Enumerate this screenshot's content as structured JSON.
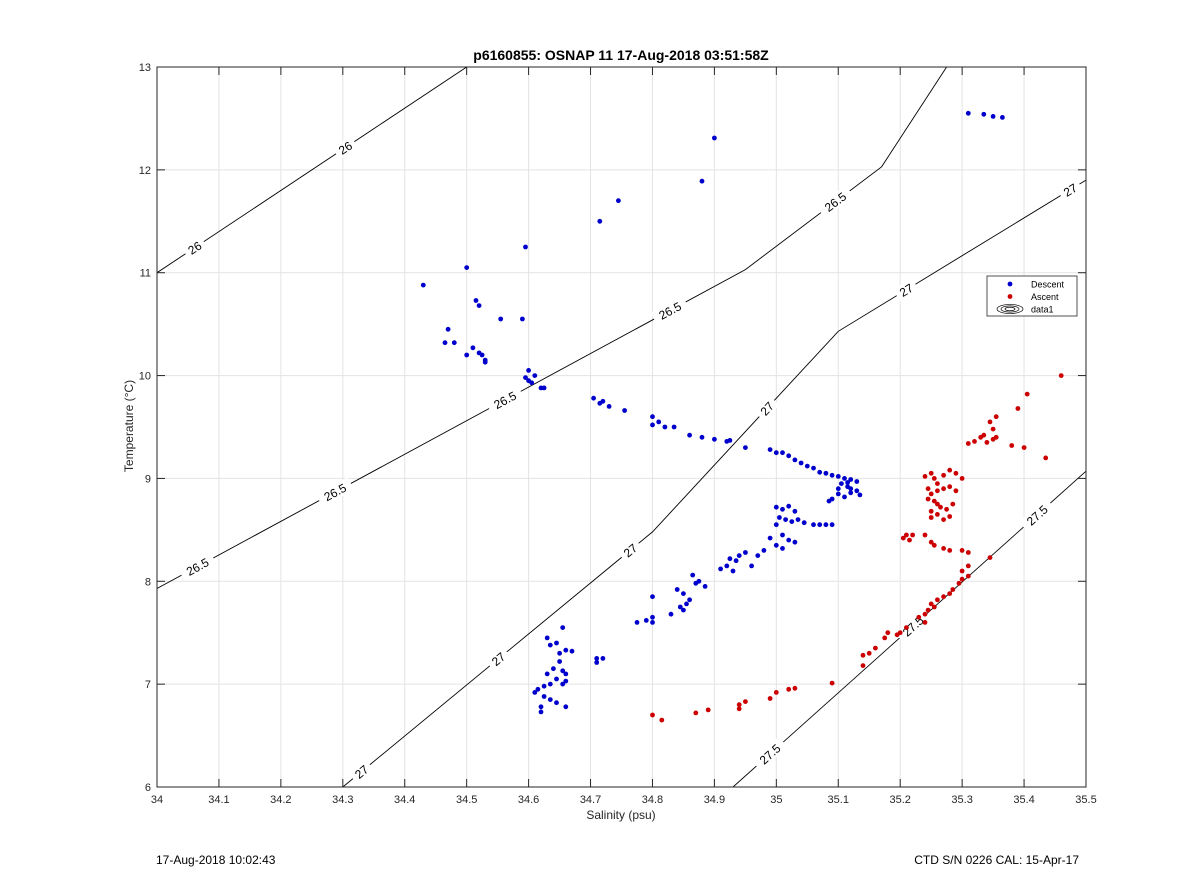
{
  "chart_data": {
    "type": "scatter",
    "title": "p6160855: OSNAP 11 17-Aug-2018 03:51:58Z",
    "xlabel": "Salinity (psu)",
    "ylabel": "Temperature (°C)",
    "xlim": [
      34,
      35.5
    ],
    "ylim": [
      6,
      13
    ],
    "xticks": [
      "34",
      "34.1",
      "34.2",
      "34.3",
      "34.4",
      "34.5",
      "34.6",
      "34.7",
      "34.8",
      "34.9",
      "35",
      "35.1",
      "35.2",
      "35.3",
      "35.4",
      "35.5"
    ],
    "yticks": [
      "6",
      "7",
      "8",
      "9",
      "10",
      "11",
      "12",
      "13"
    ],
    "grid": true,
    "legend_position": "right",
    "legend": [
      {
        "label": "Descent",
        "color": "#0000cc",
        "marker": "dot"
      },
      {
        "label": "Ascent",
        "color": "#cc0000",
        "marker": "dot"
      },
      {
        "label": "data1",
        "color": "#000000",
        "marker": "contour"
      }
    ],
    "contours": [
      {
        "level": "26",
        "points": [
          [
            34.0,
            11.0
          ],
          [
            34.5,
            13.0
          ]
        ],
        "labels": [
          [
            34.06,
            11.25
          ],
          [
            34.3,
            12.25
          ]
        ]
      },
      {
        "level": "26.5",
        "points": [
          [
            34.0,
            7.93
          ],
          [
            34.95,
            11.03
          ],
          [
            35.17,
            12.03
          ],
          [
            35.275,
            13.0
          ]
        ],
        "labels": [
          [
            34.06,
            8.2
          ],
          [
            34.28,
            8.95
          ],
          [
            34.5,
            10.45
          ],
          [
            34.75,
            11.5
          ],
          [
            35.0,
            12.45
          ]
        ]
      },
      {
        "level": "27",
        "points": [
          [
            34.3,
            6.0
          ],
          [
            34.8,
            8.48
          ],
          [
            35.1,
            10.43
          ],
          [
            35.5,
            11.9
          ]
        ],
        "labels": [
          [
            34.33,
            6.15
          ],
          [
            34.53,
            7.4
          ],
          [
            34.73,
            8.55
          ],
          [
            34.99,
            9.65
          ],
          [
            35.22,
            10.73
          ],
          [
            35.48,
            11.75
          ]
        ]
      },
      {
        "level": "27.5",
        "points": [
          [
            34.93,
            6.0
          ],
          [
            35.5,
            9.07
          ]
        ],
        "labels": [
          [
            35.0,
            6.25
          ],
          [
            35.23,
            7.5
          ],
          [
            35.42,
            8.65
          ]
        ]
      }
    ],
    "series": [
      {
        "name": "Descent",
        "color": "#0000cc",
        "points": [
          [
            35.31,
            12.55
          ],
          [
            35.335,
            12.54
          ],
          [
            35.35,
            12.52
          ],
          [
            35.365,
            12.51
          ],
          [
            34.9,
            12.31
          ],
          [
            34.88,
            11.89
          ],
          [
            34.745,
            11.7
          ],
          [
            34.715,
            11.5
          ],
          [
            34.595,
            11.25
          ],
          [
            34.43,
            10.88
          ],
          [
            34.5,
            11.05
          ],
          [
            34.515,
            10.73
          ],
          [
            34.52,
            10.68
          ],
          [
            34.555,
            10.55
          ],
          [
            34.59,
            10.55
          ],
          [
            34.47,
            10.45
          ],
          [
            34.465,
            10.32
          ],
          [
            34.48,
            10.32
          ],
          [
            34.51,
            10.27
          ],
          [
            34.5,
            10.2
          ],
          [
            34.525,
            10.2
          ],
          [
            34.53,
            10.15
          ],
          [
            34.52,
            10.22
          ],
          [
            34.53,
            10.13
          ],
          [
            34.6,
            10.05
          ],
          [
            34.595,
            9.98
          ],
          [
            34.61,
            10.0
          ],
          [
            34.6,
            9.95
          ],
          [
            34.605,
            9.93
          ],
          [
            34.62,
            9.88
          ],
          [
            34.625,
            9.88
          ],
          [
            34.705,
            9.78
          ],
          [
            34.715,
            9.73
          ],
          [
            34.72,
            9.75
          ],
          [
            34.73,
            9.7
          ],
          [
            34.755,
            9.66
          ],
          [
            34.8,
            9.6
          ],
          [
            34.8,
            9.52
          ],
          [
            34.81,
            9.55
          ],
          [
            34.82,
            9.5
          ],
          [
            34.835,
            9.5
          ],
          [
            34.86,
            9.42
          ],
          [
            34.88,
            9.4
          ],
          [
            34.9,
            9.38
          ],
          [
            34.92,
            9.36
          ],
          [
            34.925,
            9.37
          ],
          [
            34.95,
            9.3
          ],
          [
            34.99,
            9.28
          ],
          [
            35.0,
            9.25
          ],
          [
            35.01,
            9.25
          ],
          [
            35.02,
            9.22
          ],
          [
            35.03,
            9.18
          ],
          [
            35.04,
            9.15
          ],
          [
            35.05,
            9.12
          ],
          [
            35.06,
            9.1
          ],
          [
            35.07,
            9.06
          ],
          [
            35.08,
            9.05
          ],
          [
            35.09,
            9.03
          ],
          [
            35.1,
            9.02
          ],
          [
            35.11,
            9.0
          ],
          [
            35.12,
            8.99
          ],
          [
            35.13,
            8.97
          ],
          [
            35.105,
            8.95
          ],
          [
            35.115,
            8.92
          ],
          [
            35.12,
            8.9
          ],
          [
            35.13,
            8.88
          ],
          [
            35.1,
            8.85
          ],
          [
            35.11,
            8.82
          ],
          [
            35.12,
            8.86
          ],
          [
            35.135,
            8.84
          ],
          [
            35.09,
            8.8
          ],
          [
            35.085,
            8.78
          ],
          [
            35.1,
            8.9
          ],
          [
            35.115,
            8.96
          ],
          [
            35.0,
            8.72
          ],
          [
            35.01,
            8.7
          ],
          [
            35.02,
            8.73
          ],
          [
            35.03,
            8.68
          ],
          [
            35.005,
            8.62
          ],
          [
            35.015,
            8.6
          ],
          [
            35.025,
            8.58
          ],
          [
            35.035,
            8.6
          ],
          [
            35.045,
            8.57
          ],
          [
            35.06,
            8.55
          ],
          [
            35.07,
            8.55
          ],
          [
            35.08,
            8.55
          ],
          [
            35.09,
            8.55
          ],
          [
            35.0,
            8.55
          ],
          [
            35.01,
            8.45
          ],
          [
            34.99,
            8.42
          ],
          [
            35.02,
            8.4
          ],
          [
            35.03,
            8.38
          ],
          [
            35.0,
            8.35
          ],
          [
            35.01,
            8.32
          ],
          [
            34.98,
            8.3
          ],
          [
            34.97,
            8.25
          ],
          [
            34.95,
            8.28
          ],
          [
            34.94,
            8.25
          ],
          [
            34.935,
            8.2
          ],
          [
            34.925,
            8.22
          ],
          [
            34.92,
            8.15
          ],
          [
            34.91,
            8.12
          ],
          [
            34.93,
            8.1
          ],
          [
            34.96,
            8.15
          ],
          [
            34.865,
            8.06
          ],
          [
            34.87,
            7.98
          ],
          [
            34.875,
            8.0
          ],
          [
            34.885,
            7.95
          ],
          [
            34.84,
            7.92
          ],
          [
            34.85,
            7.88
          ],
          [
            34.86,
            7.82
          ],
          [
            34.855,
            7.78
          ],
          [
            34.845,
            7.75
          ],
          [
            34.85,
            7.72
          ],
          [
            34.83,
            7.68
          ],
          [
            34.8,
            7.85
          ],
          [
            34.8,
            7.65
          ],
          [
            34.79,
            7.62
          ],
          [
            34.8,
            7.6
          ],
          [
            34.775,
            7.6
          ],
          [
            34.71,
            7.25
          ],
          [
            34.71,
            7.21
          ],
          [
            34.72,
            7.25
          ],
          [
            34.67,
            7.32
          ],
          [
            34.66,
            7.33
          ],
          [
            34.65,
            7.3
          ],
          [
            34.655,
            7.55
          ],
          [
            34.63,
            7.45
          ],
          [
            34.635,
            7.38
          ],
          [
            34.645,
            7.4
          ],
          [
            34.65,
            7.22
          ],
          [
            34.64,
            7.15
          ],
          [
            34.655,
            7.13
          ],
          [
            34.66,
            7.1
          ],
          [
            34.63,
            7.1
          ],
          [
            34.645,
            7.05
          ],
          [
            34.655,
            7.0
          ],
          [
            34.66,
            7.03
          ],
          [
            34.635,
            7.0
          ],
          [
            34.625,
            6.98
          ],
          [
            34.615,
            6.95
          ],
          [
            34.61,
            6.92
          ],
          [
            34.625,
            6.88
          ],
          [
            34.635,
            6.85
          ],
          [
            34.645,
            6.82
          ],
          [
            34.66,
            6.78
          ],
          [
            34.62,
            6.78
          ],
          [
            34.62,
            6.73
          ]
        ]
      },
      {
        "name": "Ascent",
        "color": "#cc0000",
        "points": [
          [
            35.46,
            10.0
          ],
          [
            35.405,
            9.82
          ],
          [
            35.39,
            9.68
          ],
          [
            35.355,
            9.6
          ],
          [
            35.345,
            9.55
          ],
          [
            35.35,
            9.48
          ],
          [
            35.335,
            9.42
          ],
          [
            35.33,
            9.4
          ],
          [
            35.35,
            9.38
          ],
          [
            35.32,
            9.36
          ],
          [
            35.31,
            9.34
          ],
          [
            35.34,
            9.35
          ],
          [
            35.355,
            9.4
          ],
          [
            35.38,
            9.32
          ],
          [
            35.4,
            9.3
          ],
          [
            35.435,
            9.2
          ],
          [
            35.25,
            9.05
          ],
          [
            35.24,
            9.02
          ],
          [
            35.255,
            9.0
          ],
          [
            35.27,
            9.03
          ],
          [
            35.28,
            9.08
          ],
          [
            35.29,
            9.05
          ],
          [
            35.3,
            9.0
          ],
          [
            35.26,
            8.95
          ],
          [
            35.245,
            8.9
          ],
          [
            35.25,
            8.85
          ],
          [
            35.26,
            8.88
          ],
          [
            35.27,
            8.9
          ],
          [
            35.28,
            8.92
          ],
          [
            35.29,
            8.88
          ],
          [
            35.245,
            8.8
          ],
          [
            35.255,
            8.78
          ],
          [
            35.26,
            8.75
          ],
          [
            35.265,
            8.72
          ],
          [
            35.275,
            8.7
          ],
          [
            35.285,
            8.75
          ],
          [
            35.25,
            8.68
          ],
          [
            35.26,
            8.65
          ],
          [
            35.25,
            8.62
          ],
          [
            35.27,
            8.6
          ],
          [
            35.28,
            8.63
          ],
          [
            35.21,
            8.45
          ],
          [
            35.205,
            8.42
          ],
          [
            35.22,
            8.45
          ],
          [
            35.215,
            8.4
          ],
          [
            35.24,
            8.45
          ],
          [
            35.25,
            8.38
          ],
          [
            35.255,
            8.35
          ],
          [
            35.27,
            8.32
          ],
          [
            35.28,
            8.3
          ],
          [
            35.3,
            8.3
          ],
          [
            35.31,
            8.28
          ],
          [
            35.345,
            8.23
          ],
          [
            35.31,
            8.15
          ],
          [
            35.3,
            8.1
          ],
          [
            35.31,
            8.05
          ],
          [
            35.3,
            8.02
          ],
          [
            35.295,
            7.98
          ],
          [
            35.285,
            7.92
          ],
          [
            35.28,
            7.88
          ],
          [
            35.27,
            7.85
          ],
          [
            35.26,
            7.82
          ],
          [
            35.25,
            7.78
          ],
          [
            35.255,
            7.75
          ],
          [
            35.245,
            7.72
          ],
          [
            35.24,
            7.68
          ],
          [
            35.23,
            7.65
          ],
          [
            35.24,
            7.6
          ],
          [
            35.21,
            7.55
          ],
          [
            35.2,
            7.5
          ],
          [
            35.195,
            7.48
          ],
          [
            35.18,
            7.5
          ],
          [
            35.175,
            7.45
          ],
          [
            35.16,
            7.35
          ],
          [
            35.15,
            7.3
          ],
          [
            35.14,
            7.28
          ],
          [
            35.14,
            7.18
          ],
          [
            35.09,
            7.01
          ],
          [
            35.03,
            6.96
          ],
          [
            35.02,
            6.95
          ],
          [
            35.0,
            6.92
          ],
          [
            34.99,
            6.86
          ],
          [
            34.95,
            6.83
          ],
          [
            34.94,
            6.8
          ],
          [
            34.94,
            6.76
          ],
          [
            34.89,
            6.75
          ],
          [
            34.87,
            6.72
          ],
          [
            34.8,
            6.7
          ],
          [
            34.815,
            6.65
          ]
        ]
      }
    ]
  },
  "footer": {
    "left": "17-Aug-2018 10:02:43",
    "right": "CTD S/N 0226  CAL: 15-Apr-17"
  }
}
